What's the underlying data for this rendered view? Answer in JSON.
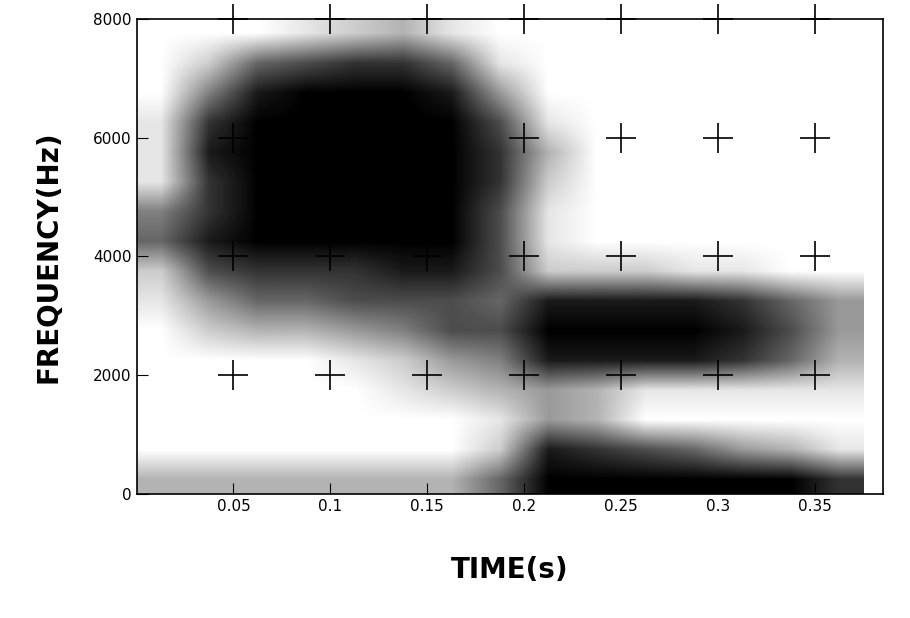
{
  "chart_data": {
    "type": "heatmap",
    "x_label": "TIME(s)",
    "y_label": "FREQUENCY(Hz)",
    "xlim": [
      0,
      0.385
    ],
    "ylim": [
      0,
      8000
    ],
    "xticks": [
      0.05,
      0.1,
      0.15,
      0.2,
      0.25,
      0.3,
      0.35
    ],
    "yticks": [
      0,
      2000,
      4000,
      6000,
      8000
    ],
    "grid": true,
    "color": "#000000",
    "time_bins": [
      0,
      0.025,
      0.05,
      0.075,
      0.1,
      0.125,
      0.15,
      0.175,
      0.2,
      0.225,
      0.25,
      0.275,
      0.3,
      0.325,
      0.35,
      0.375
    ],
    "freq_bins": [
      0,
      500,
      1000,
      1500,
      2000,
      2500,
      3000,
      3500,
      4000,
      4500,
      5000,
      5500,
      6000,
      6500,
      7000,
      7500,
      8000
    ],
    "cell_range": [
      0,
      1
    ],
    "cells": [
      [
        0.3,
        0.3,
        0.3,
        0.3,
        0.3,
        0.3,
        0.3,
        0.6,
        1,
        1,
        1,
        1,
        1,
        1,
        0.8
      ],
      [
        0,
        0,
        0,
        0,
        0,
        0,
        0,
        0.2,
        0.9,
        0.8,
        0.7,
        0.6,
        0.4,
        0.3,
        0.1
      ],
      [
        0,
        0,
        0,
        0,
        0,
        0,
        0,
        0.1,
        0.4,
        0.3,
        0,
        0,
        0,
        0,
        0
      ],
      [
        0,
        0,
        0,
        0,
        0,
        0.1,
        0.2,
        0.3,
        0.4,
        0.3,
        0.1,
        0.1,
        0.1,
        0.1,
        0.1
      ],
      [
        0,
        0,
        0,
        0,
        0.1,
        0.2,
        0.4,
        0.5,
        0.9,
        0.9,
        0.9,
        0.9,
        0.8,
        0.6,
        0.3
      ],
      [
        0,
        0.2,
        0.3,
        0.3,
        0.4,
        0.5,
        0.7,
        0.7,
        1,
        1,
        1,
        1,
        0.9,
        0.7,
        0.4
      ],
      [
        0.1,
        0.4,
        0.6,
        0.6,
        0.7,
        0.7,
        0.7,
        0.6,
        0.9,
        0.9,
        0.9,
        0.9,
        0.8,
        0.6,
        0.4
      ],
      [
        0.2,
        0.7,
        0.8,
        0.8,
        0.8,
        0.9,
        0.9,
        0.7,
        0.2,
        0.2,
        0.2,
        0.1,
        0.1,
        0,
        0
      ],
      [
        0.6,
        0.9,
        1,
        1,
        1,
        1,
        1,
        0.7,
        0.1,
        0,
        0,
        0,
        0,
        0,
        0
      ],
      [
        0.5,
        0.8,
        1,
        1,
        1,
        1,
        1,
        0.7,
        0.1,
        0,
        0,
        0,
        0,
        0,
        0
      ],
      [
        0.1,
        0.8,
        1,
        1,
        1,
        1,
        1,
        0.8,
        0.2,
        0,
        0,
        0,
        0,
        0,
        0
      ],
      [
        0.1,
        0.9,
        1,
        1,
        1,
        1,
        1,
        0.8,
        0.3,
        0,
        0,
        0,
        0,
        0,
        0
      ],
      [
        0.1,
        0.8,
        1,
        1,
        1,
        1,
        1,
        0.7,
        0.1,
        0,
        0,
        0,
        0,
        0,
        0
      ],
      [
        0,
        0.5,
        0.9,
        1,
        1,
        1,
        0.9,
        0.4,
        0,
        0,
        0,
        0,
        0,
        0,
        0
      ],
      [
        0,
        0.2,
        0.6,
        0.7,
        0.8,
        0.8,
        0.6,
        0.1,
        0,
        0,
        0,
        0,
        0,
        0,
        0
      ],
      [
        0,
        0,
        0,
        0.1,
        0.2,
        0.3,
        0.1,
        0,
        0,
        0,
        0,
        0,
        0,
        0,
        0
      ]
    ]
  }
}
